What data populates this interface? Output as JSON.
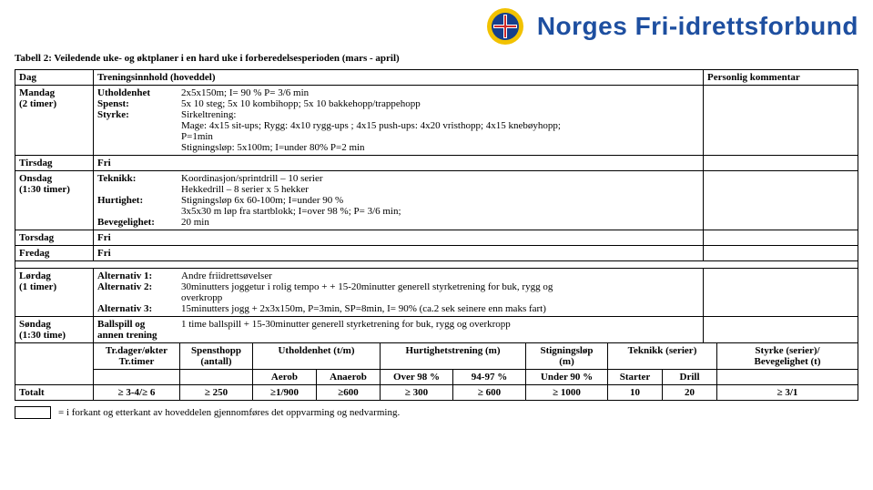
{
  "header": {
    "org_name": "Norges Fri-idrettsforbund",
    "logo_colors": {
      "ring": "#f2c200",
      "inner": "#163f8c",
      "cross": "#ffffff",
      "red": "#cf2b2b"
    }
  },
  "caption": "Tabell 2: Veiledende uke- og øktplaner i en hard uke i forberedelsesperioden (mars - april)",
  "columns": {
    "dag": "Dag",
    "innhold": "Treningsinnhold (hoveddel)",
    "kommentar": "Personlig kommentar"
  },
  "rows": [
    {
      "day": "Mandag",
      "day_sub": "(2 timer)",
      "lines": [
        {
          "label": "Utholdenhet",
          "text": "2x5x150m; I= 90 %  P= 3/6 min"
        },
        {
          "label": "Spenst:",
          "text": "5x 10 steg; 5x 10 kombihopp; 5x 10 bakkehopp/trappehopp"
        },
        {
          "label": "Styrke:",
          "text": "Sirkeltrening:"
        },
        {
          "label": "",
          "text": "Mage: 4x15 sit-ups; Rygg: 4x10 rygg-ups ; 4x15 push-ups: 4x20 vristhopp; 4x15 knebøyhopp;"
        },
        {
          "label": "",
          "text": "P=1min"
        },
        {
          "label": "",
          "text": "Stigningsløp: 5x100m; I=under 80%  P=2 min"
        }
      ]
    },
    {
      "day": "Tirsdag",
      "day_sub": "",
      "lines": [
        {
          "label": "Fri",
          "text": ""
        }
      ]
    },
    {
      "day": "Onsdag",
      "day_sub": "(1:30 timer)",
      "lines": [
        {
          "label": "Teknikk:",
          "text": "Koordinasjon/sprintdrill – 10 serier"
        },
        {
          "label": "",
          "text": "Hekkedrill – 8 serier x 5 hekker"
        },
        {
          "label": "Hurtighet:",
          "text": "Stigningsløp 6x 60-100m; I=under 90 %"
        },
        {
          "label": "",
          "text": "3x5x30 m løp fra startblokk; I=over 98 %; P= 3/6 min;"
        },
        {
          "label": "Bevegelighet:",
          "text": "      20 min"
        }
      ]
    },
    {
      "day": "Torsdag",
      "day_sub": "",
      "lines": [
        {
          "label": "Fri",
          "text": ""
        }
      ]
    },
    {
      "day": "Fredag",
      "day_sub": "",
      "lines": [
        {
          "label": "Fri",
          "text": ""
        }
      ]
    }
  ],
  "rows2": [
    {
      "day": "Lørdag",
      "day_sub": "(1 timer)",
      "lines": [
        {
          "label": "Alternativ 1:",
          "text": "Andre friidrettsøvelser"
        },
        {
          "label": "Alternativ 2:",
          "text": "30minutters joggetur i rolig tempo + + 15-20minutter generell styrketrening for buk, rygg og"
        },
        {
          "label": "",
          "text": "overkropp"
        },
        {
          "label": "Alternativ 3:",
          "text": "15minutters jogg + 2x3x150m, P=3min, SP=8min, I= 90% (ca.2 sek seinere enn maks fart)"
        }
      ]
    },
    {
      "day": "Søndag",
      "day_sub": "(1:30 time)",
      "lines": [
        {
          "label": "Ballspill og",
          "text": "1 time ballspill + 15-30minutter generell styrketrening for buk, rygg og overkropp"
        },
        {
          "label": "annen trening",
          "text": ""
        }
      ]
    }
  ],
  "totals": {
    "toprow": [
      "Tr.dager/økter\nTr.timer",
      "Spensthopp\n(antall)",
      "Utholdenhet (t/m)",
      "Hurtighetstrening (m)",
      "Stigningsløp\n(m)",
      "Teknikk (serier)",
      "Styrke (serier)/\nBevegelighet (t)"
    ],
    "midrow": [
      "",
      "",
      "Aerob",
      "Anaerob",
      "Over 98 %",
      "94-97 %",
      "Under 90 %",
      "Starter",
      "Drill",
      ""
    ],
    "totalt_label": "Totalt",
    "values": [
      "≥ 3-4/≥ 6",
      "≥ 250",
      "≥1/900",
      "≥600",
      "≥ 300",
      "≥ 600",
      "≥ 1000",
      "10",
      "20",
      "≥ 3/1"
    ]
  },
  "footnote": {
    "swatch_color": "#ffffff",
    "text": "= i forkant og etterkant av hoveddelen gjennomføres det oppvarming og nedvarming."
  }
}
